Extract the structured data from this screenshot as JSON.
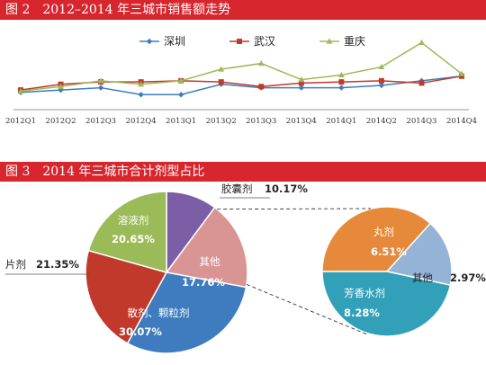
{
  "figure2": {
    "title": "图 2　2012–2014 年三城市销售额走势",
    "chart_data": {
      "type": "line",
      "title": "图 2　2012–2014 年三城市销售额走势",
      "categories": [
        "2012Q1",
        "2012Q2",
        "2012Q3",
        "2012Q4",
        "2013Q1",
        "2013Q2",
        "2013Q3",
        "2013Q4",
        "2014Q1",
        "2014Q2",
        "2014Q3",
        "2014Q4"
      ],
      "series": [
        {
          "name": "深圳",
          "color": "#3e7cbf",
          "values": [
            15,
            17,
            19,
            13,
            13,
            22,
            19,
            19,
            19,
            21,
            25,
            29
          ]
        },
        {
          "name": "武汉",
          "color": "#c0392b",
          "values": [
            17,
            22,
            24,
            24,
            25,
            24,
            20,
            23,
            24,
            25,
            23,
            29
          ]
        },
        {
          "name": "重庆",
          "color": "#9bbb59",
          "values": [
            16,
            20,
            25,
            22,
            25,
            35,
            40,
            26,
            30,
            37,
            58,
            31
          ]
        }
      ],
      "ylim": [
        0,
        70
      ],
      "grid": false,
      "legend": "top-center"
    }
  },
  "figure3": {
    "title": "图 3　2014 年三城市合计剂型占比",
    "chart_data": {
      "type": "pie",
      "title": "图 3　2014 年三城市合计剂型占比",
      "slices": [
        {
          "label": "胶囊剂",
          "value": 10.17,
          "display": "10.17%",
          "color": "#7b5ea6"
        },
        {
          "label": "其他",
          "value": 17.76,
          "display": "17.76%",
          "color": "#d99594"
        },
        {
          "label": "散剂、颗粒剂",
          "value": 30.07,
          "display": "30.07%",
          "color": "#3e7cbf"
        },
        {
          "label": "片剂",
          "value": 21.35,
          "display": "21.35%",
          "color": "#c0392b"
        },
        {
          "label": "溶液剂",
          "value": 20.65,
          "display": "20.65%",
          "color": "#9bbb59"
        }
      ],
      "breakdown": {
        "of": "其他",
        "slices": [
          {
            "label": "丸剂",
            "value": 6.51,
            "display": "6.51%",
            "color": "#e6893a"
          },
          {
            "label": "其他",
            "value": 2.97,
            "display": "2.97%",
            "color": "#95b3d7"
          },
          {
            "label": "芳香水剂",
            "value": 8.28,
            "display": "8.28%",
            "color": "#31a0b8"
          }
        ]
      }
    }
  }
}
